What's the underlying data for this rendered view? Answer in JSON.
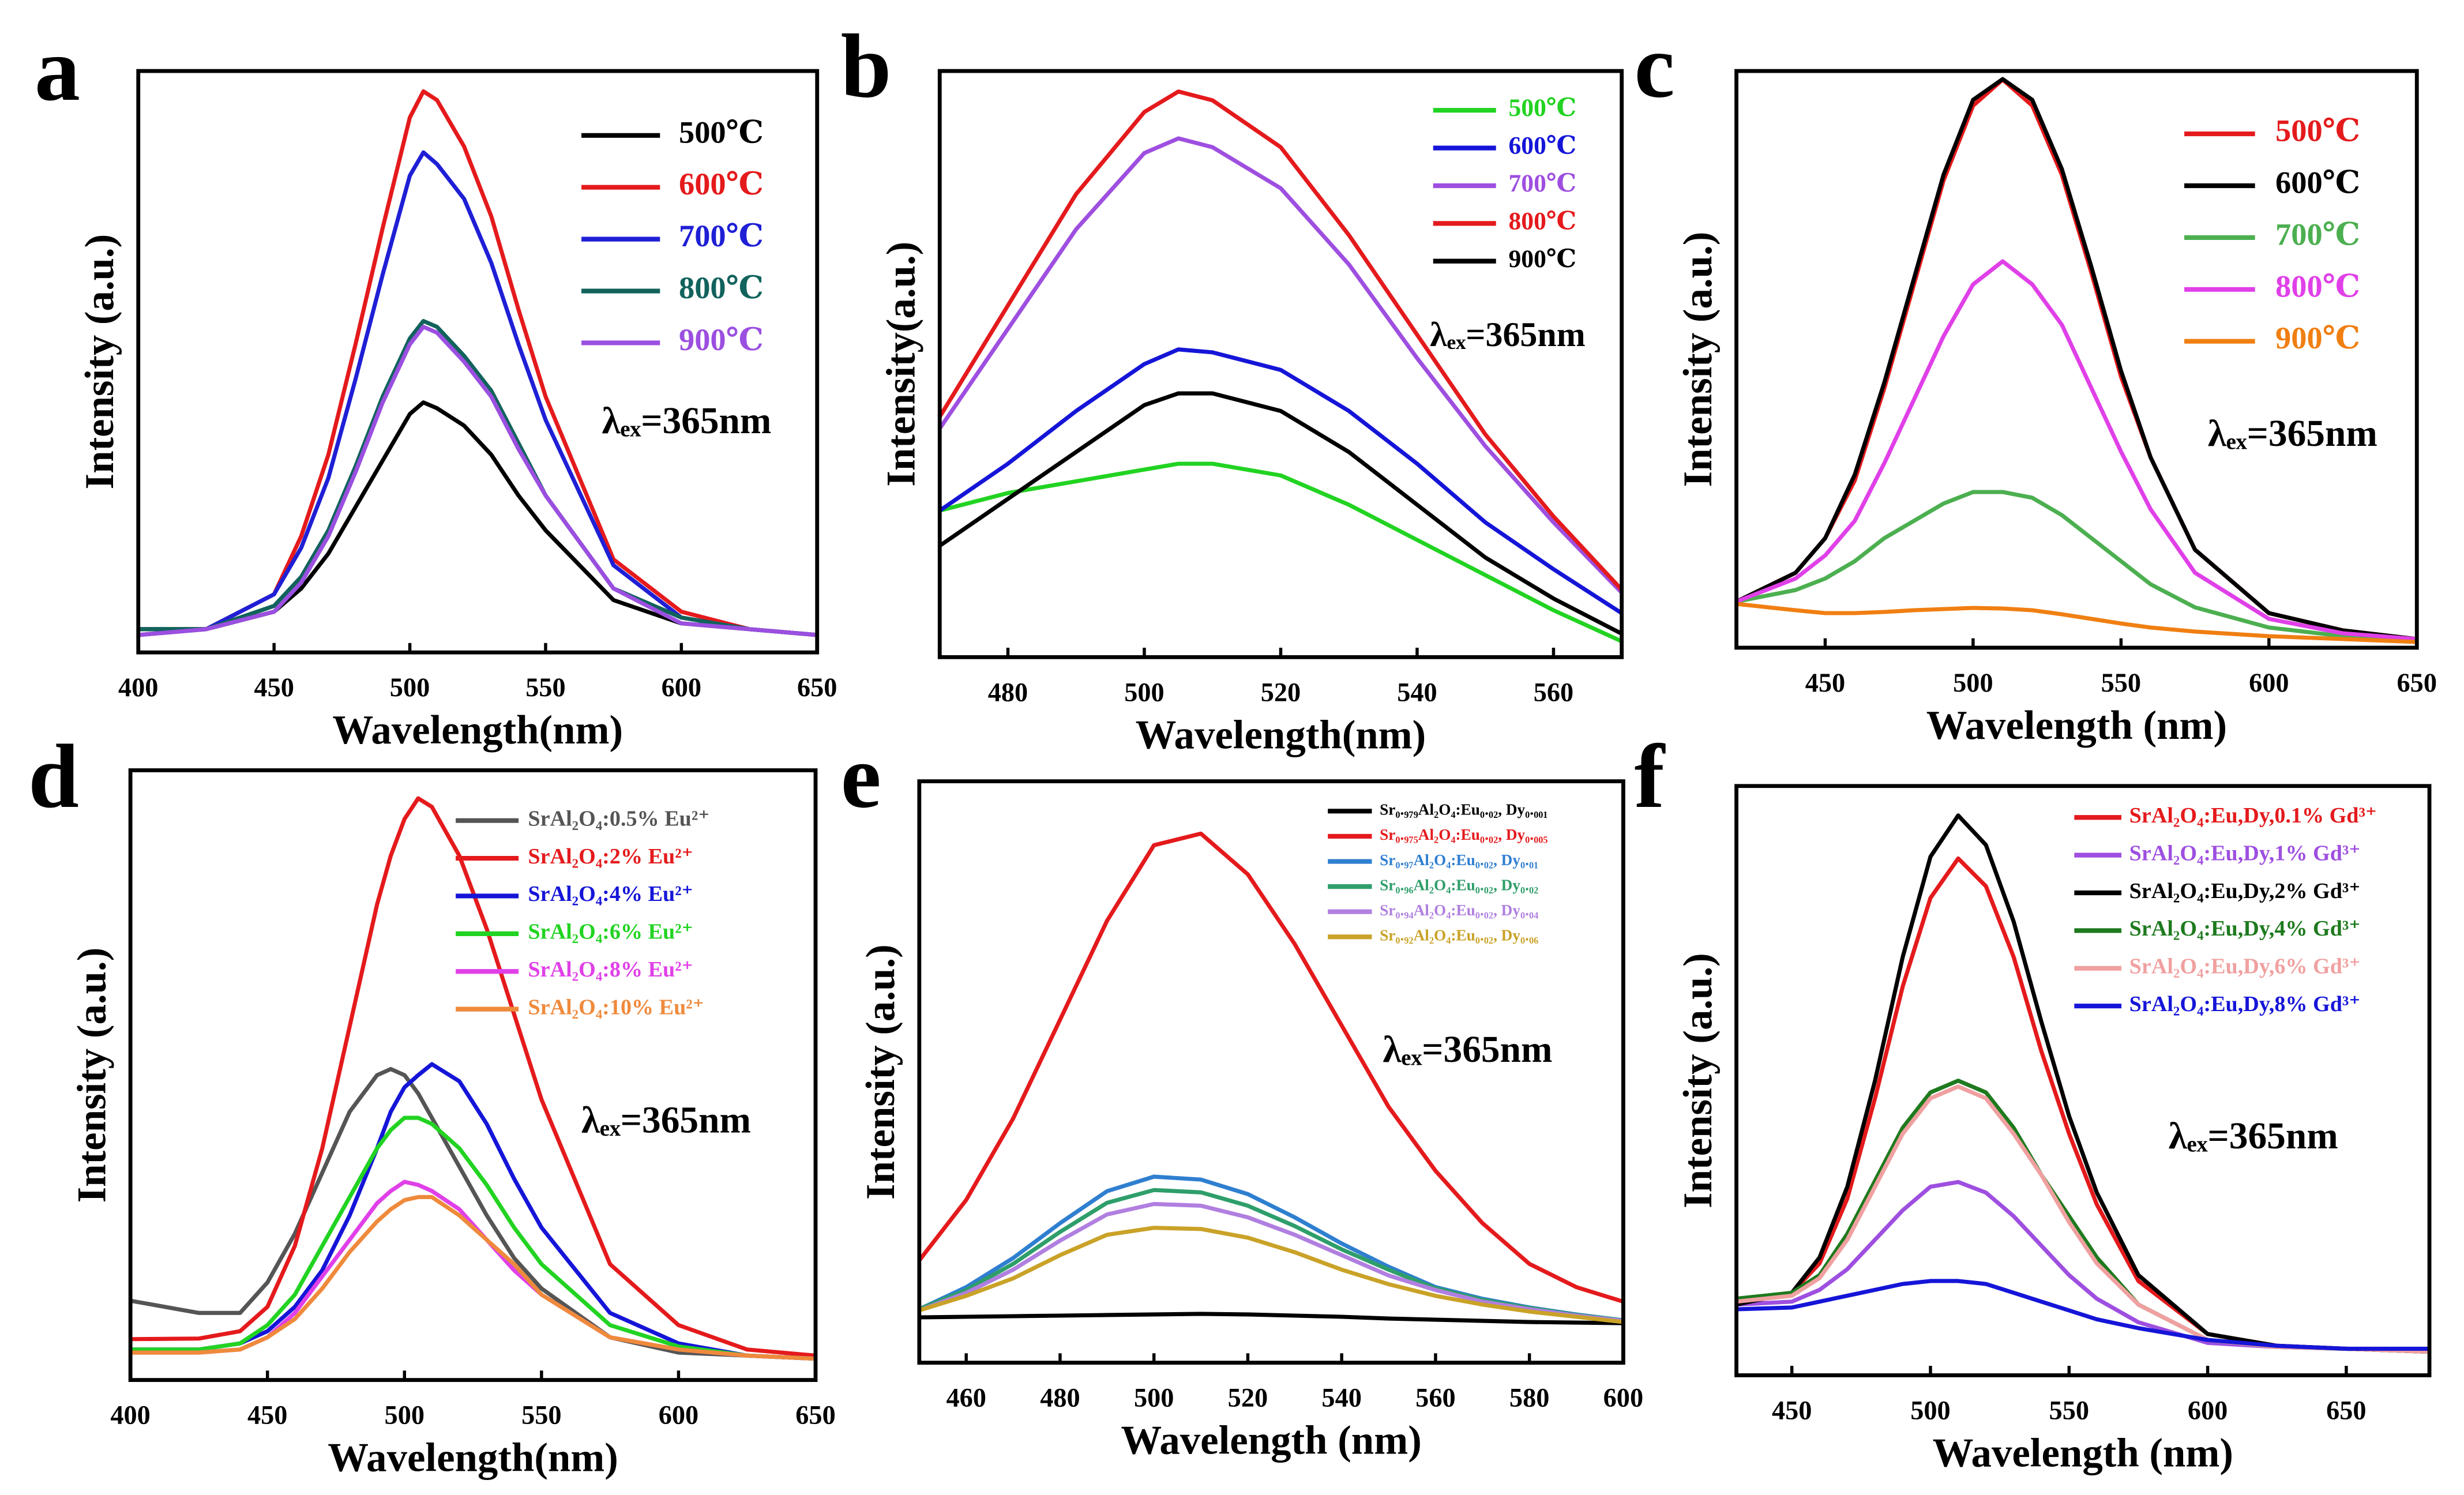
{
  "chart_data": [
    {
      "type": "line",
      "panel_label": "a",
      "xlabel": "Wavelength(nm)",
      "ylabel": "Intensity (a.u.)",
      "annotation": "λₑₓ=365nm",
      "xlim": [
        400,
        650
      ],
      "xticks": [
        400,
        450,
        500,
        550,
        600,
        650
      ],
      "ylim": [
        0,
        100
      ],
      "x": [
        400,
        425,
        450,
        460,
        470,
        480,
        490,
        500,
        505,
        510,
        520,
        530,
        540,
        550,
        575,
        600,
        625,
        650
      ],
      "series": [
        {
          "name": "500℃",
          "color": "#000000",
          "values": [
            4,
            4,
            7,
            11,
            17,
            25,
            33,
            41,
            43,
            42,
            39,
            34,
            27,
            21,
            9,
            5,
            4,
            3
          ]
        },
        {
          "name": "600℃",
          "color": "#e41a1c",
          "values": [
            3,
            4,
            10,
            20,
            34,
            53,
            73,
            92,
            96.5,
            95,
            87,
            75,
            59,
            44,
            16,
            7,
            4,
            3
          ]
        },
        {
          "name": "700℃",
          "color": "#1f1fd6",
          "values": [
            3,
            4,
            10,
            18,
            30,
            47,
            65,
            82,
            86,
            84,
            78,
            67,
            53,
            40,
            15,
            6,
            4,
            3
          ]
        },
        {
          "name": "800℃",
          "color": "#11635c",
          "values": [
            4,
            4,
            8,
            13,
            21,
            32,
            44,
            54,
            57,
            56,
            51,
            45,
            36,
            27,
            11,
            6,
            4,
            3
          ]
        },
        {
          "name": "900℃",
          "color": "#9b4fe0",
          "values": [
            3,
            4,
            7,
            12,
            20,
            31,
            43,
            53,
            56,
            55,
            50,
            44,
            35,
            27,
            11,
            5,
            4,
            3
          ]
        }
      ]
    },
    {
      "type": "line",
      "panel_label": "b",
      "xlabel": "Wavelength(nm)",
      "ylabel": "Intensity(a.u.)",
      "annotation": "λₑₓ=365nm",
      "xlim": [
        470,
        570
      ],
      "xticks": [
        480,
        500,
        520,
        540,
        560
      ],
      "ylim": [
        0,
        100
      ],
      "x": [
        470,
        480,
        490,
        500,
        505,
        510,
        520,
        530,
        540,
        550,
        560,
        570
      ],
      "series": [
        {
          "name": "500℃",
          "color": "#22d322",
          "values": [
            25,
            28,
            30,
            32,
            33,
            33,
            31,
            26,
            20,
            14,
            8,
            2.7
          ]
        },
        {
          "name": "600℃",
          "color": "#1515d8",
          "values": [
            25,
            33,
            42,
            50,
            52.5,
            52,
            49,
            42,
            33,
            23,
            15,
            7.5
          ]
        },
        {
          "name": "700℃",
          "color": "#9e4fe0",
          "values": [
            39,
            56,
            73,
            86,
            88.5,
            87,
            80,
            67,
            51,
            36,
            23,
            11
          ]
        },
        {
          "name": "800℃",
          "color": "#e41a1c",
          "values": [
            41,
            60,
            79,
            93,
            96.5,
            95,
            87,
            72,
            55,
            38,
            24,
            11.5
          ]
        },
        {
          "name": "900℃",
          "color": "#000000",
          "values": [
            19,
            27,
            35,
            43,
            45,
            45,
            42,
            35,
            26,
            17,
            10,
            4
          ]
        }
      ]
    },
    {
      "type": "line",
      "panel_label": "c",
      "xlabel": "Wavelength (nm)",
      "ylabel": "Intensity (a.u.)",
      "annotation": "λₑₓ=365nm",
      "xlim": [
        420,
        650
      ],
      "xticks": [
        450,
        500,
        550,
        600,
        650
      ],
      "ylim": [
        0,
        100
      ],
      "x": [
        420,
        440,
        450,
        460,
        470,
        480,
        490,
        500,
        510,
        520,
        530,
        540,
        550,
        560,
        575,
        600,
        625,
        650
      ],
      "series": [
        {
          "name": "500℃",
          "color": "#e41a1c",
          "values": [
            8,
            13,
            19,
            29,
            45,
            63,
            81,
            94,
            98.5,
            94,
            82,
            65,
            47,
            33,
            17,
            6,
            3,
            1.5
          ]
        },
        {
          "name": "600℃",
          "color": "#000000",
          "values": [
            8,
            13,
            19,
            30,
            46,
            64,
            82,
            95,
            98.6,
            95,
            83,
            66,
            48,
            33,
            17,
            6,
            3,
            1.5
          ]
        },
        {
          "name": "700℃",
          "color": "#4caf50",
          "values": [
            8,
            10,
            12,
            15,
            19,
            22,
            25,
            27,
            27,
            26,
            23,
            19,
            15,
            11,
            7,
            3.5,
            2,
            1.2
          ]
        },
        {
          "name": "800℃",
          "color": "#e040e8",
          "values": [
            8,
            12,
            16,
            22,
            32,
            43,
            54,
            63,
            67,
            63,
            56,
            45,
            34,
            24,
            13,
            5,
            2.5,
            1.5
          ]
        },
        {
          "name": "900℃",
          "color": "#f07f12",
          "values": [
            7.6,
            6.5,
            6,
            6,
            6.2,
            6.5,
            6.7,
            6.9,
            6.8,
            6.5,
            5.8,
            5,
            4.2,
            3.5,
            2.8,
            2,
            1.5,
            1
          ]
        }
      ]
    },
    {
      "type": "line",
      "panel_label": "d",
      "xlabel": "Wavelength(nm)",
      "ylabel": "Intensity (a.u.)",
      "annotation": "λₑₓ=365nm",
      "xlim": [
        400,
        650
      ],
      "xticks": [
        400,
        450,
        500,
        550,
        600,
        650
      ],
      "ylim": [
        0,
        100
      ],
      "x": [
        400,
        425,
        440,
        450,
        460,
        470,
        480,
        490,
        495,
        500,
        505,
        510,
        520,
        530,
        540,
        550,
        575,
        600,
        625,
        650
      ],
      "series": [
        {
          "name": "SrAl₂O₄:0.5% Eu²⁺",
          "color": "#555555",
          "values": [
            13,
            11,
            11,
            16,
            24,
            34,
            44,
            50,
            51,
            50,
            47,
            43,
            35,
            27,
            20,
            15,
            7,
            4.5,
            4,
            3.5
          ]
        },
        {
          "name": "SrAl₂O₄:2% Eu²⁺",
          "color": "#e41a1c",
          "values": [
            6.7,
            6.8,
            8,
            12,
            22,
            38,
            58,
            78,
            86,
            92,
            95.4,
            94,
            86,
            74,
            60,
            46,
            19,
            9,
            5,
            4
          ]
        },
        {
          "name": "SrAl₂O₄:4% Eu²⁺",
          "color": "#1515d8",
          "values": [
            5,
            5,
            6,
            8,
            12,
            18,
            27,
            38,
            44,
            48,
            50,
            51.8,
            49,
            42,
            33,
            25,
            11,
            6,
            4,
            3.5
          ]
        },
        {
          "name": "SrAl₂O₄:6% Eu²⁺",
          "color": "#22d322",
          "values": [
            5,
            5,
            6,
            9,
            14,
            22,
            30,
            38,
            41,
            43,
            43,
            42,
            38,
            32,
            25,
            19,
            9,
            5.5,
            4,
            3.5
          ]
        },
        {
          "name": "SrAl₂O₄:8% Eu²⁺",
          "color": "#e040e8",
          "values": [
            4.5,
            4.5,
            5,
            7,
            11,
            17,
            23,
            29,
            31,
            32.5,
            32,
            31,
            28,
            23,
            18,
            14,
            7,
            5,
            4,
            3.5
          ]
        },
        {
          "name": "SrAl₂O₄:10% Eu²⁺",
          "color": "#ef8a3c",
          "values": [
            4.5,
            4.5,
            5,
            7,
            10,
            15,
            21,
            26,
            28,
            29.5,
            30,
            30,
            27,
            23,
            19,
            14,
            7,
            5,
            4,
            3.5
          ]
        }
      ]
    },
    {
      "type": "line",
      "panel_label": "e",
      "xlabel": "Wavelength (nm)",
      "ylabel": "Intensity (a.u.)",
      "annotation": "λₑₓ=365nm",
      "xlim": [
        450,
        600
      ],
      "xticks": [
        460,
        480,
        500,
        520,
        540,
        560,
        580,
        600
      ],
      "ylim": [
        0,
        100
      ],
      "x": [
        450,
        460,
        470,
        480,
        490,
        500,
        510,
        520,
        530,
        540,
        550,
        560,
        570,
        580,
        590,
        600
      ],
      "series": [
        {
          "name": "Sr₀.₉₇₉Al₂O₄:Eu₀.₀₂, Dy₀.₀₀₁",
          "color": "#000000",
          "values": [
            7.8,
            7.9,
            8,
            8.1,
            8.2,
            8.3,
            8.4,
            8.3,
            8.1,
            7.9,
            7.6,
            7.4,
            7.2,
            7,
            6.9,
            6.8
          ]
        },
        {
          "name": "Sr₀.₉₇₅Al₂O₄:Eu₀.₀₂, Dy₀.₀₀₅",
          "color": "#e41a1c",
          "values": [
            17.6,
            28,
            42,
            59,
            76,
            89,
            91,
            84,
            72,
            58,
            44,
            33,
            24,
            17,
            13,
            10.5
          ]
        },
        {
          "name": "Sr₀.₉₇Al₂O₄:Eu₀.₀₂, Dy₀.₀₁",
          "color": "#2f7fd0",
          "values": [
            9.2,
            13,
            18,
            24,
            29.5,
            32,
            31.5,
            29,
            25,
            20.5,
            16.5,
            13,
            11,
            9.5,
            8.3,
            7.3
          ]
        },
        {
          "name": "Sr₀.₉₆Al₂O₄:Eu₀.₀₂, Dy₀.₀₂",
          "color": "#2e9e6a",
          "values": [
            9.2,
            12.5,
            17,
            22.5,
            27.5,
            29.7,
            29.3,
            27,
            23.5,
            19.5,
            16,
            12.8,
            10.8,
            9.4,
            8.2,
            7.3
          ]
        },
        {
          "name": "Sr₀.₉₄Al₂O₄:Eu₀.₀₂, Dy₀.₀₄",
          "color": "#b07fe0",
          "values": [
            9,
            12,
            16,
            21,
            25.5,
            27.3,
            27,
            25,
            22,
            18.5,
            15,
            12.5,
            10.5,
            9.2,
            8.1,
            7.2
          ]
        },
        {
          "name": "Sr₀.₉₂Al₂O₄:Eu₀.₀₂, Dy₀.₀₆",
          "color": "#c9a227",
          "values": [
            9,
            11.5,
            14.5,
            18.5,
            22,
            23.2,
            23,
            21.5,
            19,
            16,
            13.5,
            11.5,
            10,
            8.8,
            7.9,
            7
          ]
        }
      ]
    },
    {
      "type": "line",
      "panel_label": "f",
      "xlabel": "Wavelength (nm)",
      "ylabel": "Intensity (a.u.)",
      "annotation": "λₑₓ=365nm",
      "xlim": [
        430,
        680
      ],
      "xticks": [
        450,
        500,
        550,
        600,
        650
      ],
      "ylim": [
        0,
        100
      ],
      "x": [
        430,
        450,
        460,
        470,
        480,
        490,
        500,
        510,
        520,
        530,
        540,
        550,
        560,
        575,
        600,
        625,
        650,
        680
      ],
      "series": [
        {
          "name": "SrAl₂O₄:Eu,Dy,0.1% Gd³⁺",
          "color": "#e41a1c",
          "values": [
            12,
            14,
            19,
            30,
            47,
            66,
            81,
            87.7,
            83,
            71,
            55,
            41,
            29,
            16,
            7,
            5,
            4.5,
            4
          ]
        },
        {
          "name": "SrAl₂O₄:Eu,Dy,1% Gd³⁺",
          "color": "#9e4fe0",
          "values": [
            12,
            12.5,
            14.5,
            18,
            23,
            28,
            32,
            32.8,
            31,
            27,
            22,
            17,
            13,
            9,
            5.5,
            4.8,
            4.5,
            4
          ]
        },
        {
          "name": "SrAl₂O₄:Eu,Dy,2% Gd³⁺",
          "color": "#000000",
          "values": [
            12,
            14,
            20,
            32,
            50,
            71,
            88,
            95,
            90,
            77,
            60,
            44,
            31,
            17,
            7,
            5,
            4.5,
            4
          ]
        },
        {
          "name": "SrAl₂O₄:Eu,Dy,4% Gd³⁺",
          "color": "#1e7a1e",
          "values": [
            13,
            14,
            17,
            24,
            33,
            42,
            48,
            50,
            48,
            42,
            34,
            27,
            20,
            12,
            6,
            4.8,
            4.5,
            4
          ]
        },
        {
          "name": "SrAl₂O₄:Eu,Dy,6% Gd³⁺",
          "color": "#f0a0a0",
          "values": [
            12.5,
            13.5,
            16.5,
            23,
            32,
            41,
            47,
            49,
            47,
            41,
            34,
            26,
            19,
            12,
            6,
            4.8,
            4.5,
            4
          ]
        },
        {
          "name": "SrAl₂O₄:Eu,Dy,8% Gd³⁺",
          "color": "#1515d8",
          "values": [
            11.2,
            11.5,
            12.5,
            13.5,
            14.5,
            15.5,
            16,
            16,
            15.5,
            14,
            12.5,
            11,
            9.5,
            8,
            6,
            5,
            4.5,
            4.5
          ]
        }
      ]
    }
  ]
}
